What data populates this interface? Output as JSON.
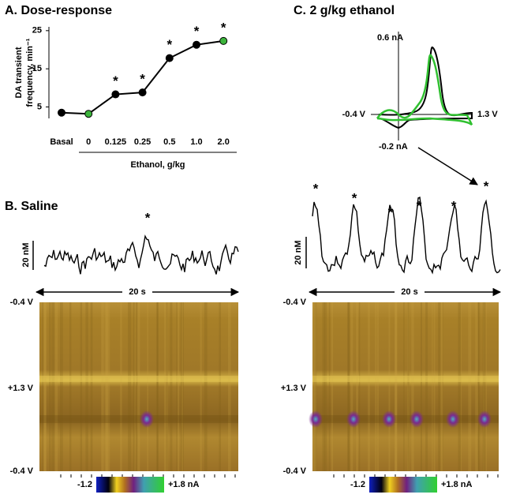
{
  "chart_data": [
    {
      "type": "line",
      "title": "A. Dose-response",
      "categories": [
        "Basal",
        "0",
        "0.125",
        "0.25",
        "0.5",
        "1.0",
        "2.0"
      ],
      "values": [
        3.5,
        3.2,
        8.3,
        8.8,
        17.8,
        21.3,
        22.3
      ],
      "point_colors": [
        "#000000",
        "#3cb43c",
        "#000000",
        "#000000",
        "#000000",
        "#000000",
        "#3cb43c"
      ],
      "line_color": "#000000",
      "significance": [
        null,
        null,
        "*",
        "*",
        "*",
        "*",
        "*"
      ],
      "xlabel": "Ethanol, g/kg",
      "ylabel": [
        "DA transient",
        "frequency, min⁻¹"
      ],
      "ylim": [
        2,
        26
      ],
      "yticks": [
        5,
        15,
        25
      ]
    }
  ],
  "figure": {
    "panel_b": {
      "title": "B.  Saline",
      "scale_conc": "20 nM",
      "scale_time": "20 s",
      "stars": [
        "*"
      ],
      "potential_labels": [
        "-0.4 V",
        "+1.3 V",
        "-0.4 V"
      ],
      "colorbar": [
        "-1.2",
        "+1.8 nA"
      ]
    },
    "panel_c": {
      "title": "C.  2 g/kg ethanol",
      "cv_labels": [
        "0.6 nA",
        "-0.2 nA",
        "-0.4 V",
        "1.3 V"
      ],
      "scale_conc": "20 nM",
      "scale_time": "20 s",
      "stars": [
        "*",
        "*",
        "*",
        "*",
        "*",
        "*"
      ],
      "potential_labels": [
        "-0.4 V",
        "+1.3 V",
        "-0.4 V"
      ],
      "colorbar": [
        "-1.2",
        "+1.8 nA"
      ]
    }
  }
}
